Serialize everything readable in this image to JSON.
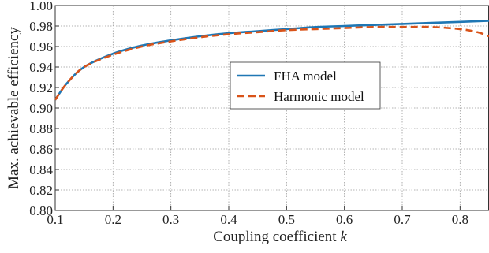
{
  "chart_data": {
    "type": "line",
    "title": "",
    "xlabel": "Coupling coefficient",
    "xlabel_var": "k",
    "ylabel": "Max. achievable efficiency",
    "xlim": [
      0.1,
      0.85
    ],
    "ylim": [
      0.8,
      1.0
    ],
    "xticks": [
      "0.1",
      "0.2",
      "0.3",
      "0.4",
      "0.5",
      "0.6",
      "0.7",
      "0.8"
    ],
    "yticks": [
      "0.80",
      "0.82",
      "0.84",
      "0.86",
      "0.88",
      "0.90",
      "0.92",
      "0.94",
      "0.96",
      "0.98",
      "1.00"
    ],
    "grid": true,
    "legend_position": "center-right",
    "series": [
      {
        "name": "FHA model",
        "color": "#1f77b4",
        "style": "solid",
        "x": [
          0.1,
          0.12,
          0.15,
          0.2,
          0.25,
          0.3,
          0.35,
          0.4,
          0.45,
          0.5,
          0.55,
          0.6,
          0.65,
          0.7,
          0.75,
          0.8,
          0.85
        ],
        "y": [
          0.908,
          0.924,
          0.94,
          0.953,
          0.961,
          0.966,
          0.97,
          0.973,
          0.975,
          0.977,
          0.979,
          0.98,
          0.981,
          0.982,
          0.983,
          0.984,
          0.985
        ]
      },
      {
        "name": "Harmonic model",
        "color": "#d95319",
        "style": "dashed",
        "x": [
          0.1,
          0.12,
          0.15,
          0.2,
          0.25,
          0.3,
          0.35,
          0.4,
          0.45,
          0.5,
          0.55,
          0.6,
          0.65,
          0.7,
          0.75,
          0.8,
          0.83,
          0.85
        ],
        "y": [
          0.908,
          0.924,
          0.94,
          0.952,
          0.96,
          0.965,
          0.969,
          0.972,
          0.974,
          0.976,
          0.977,
          0.978,
          0.979,
          0.979,
          0.979,
          0.977,
          0.974,
          0.97
        ]
      }
    ]
  }
}
